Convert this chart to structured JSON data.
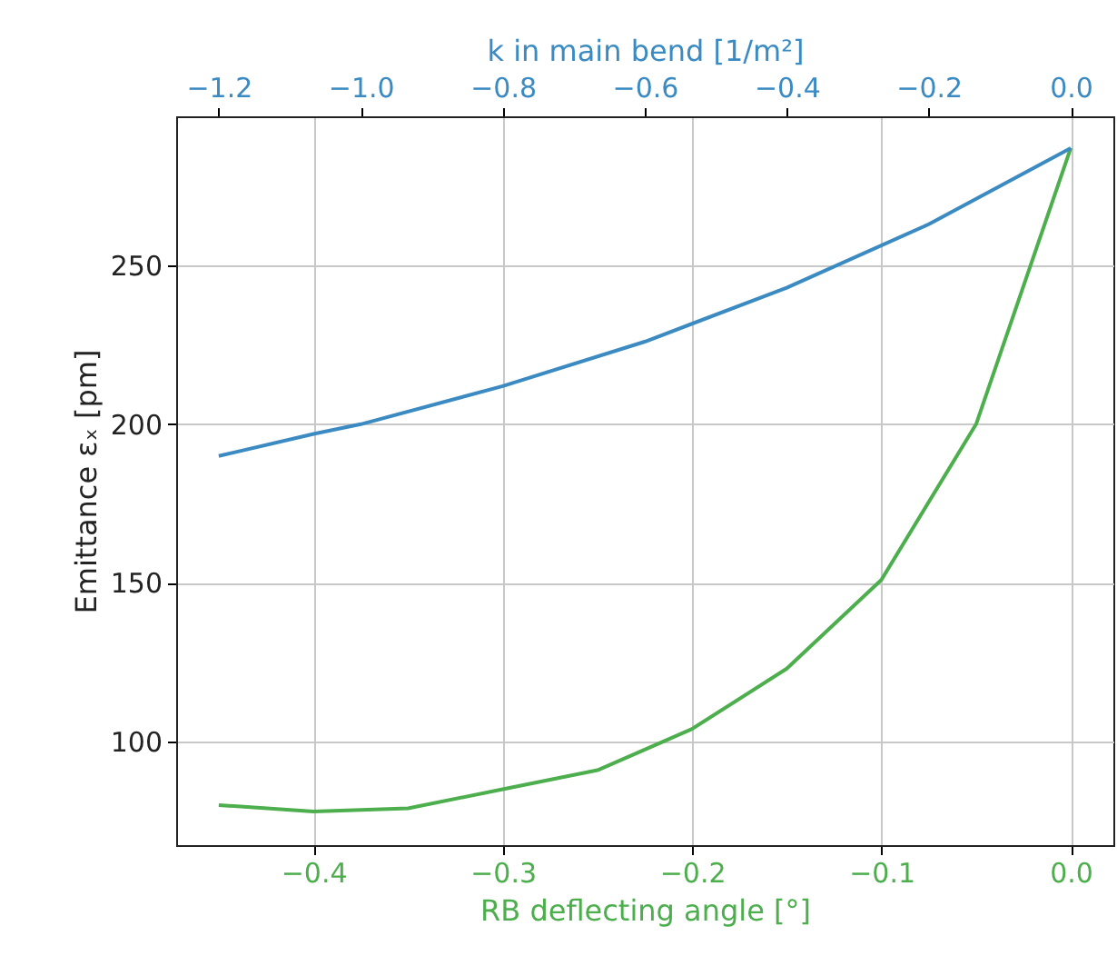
{
  "chart_data": {
    "type": "line",
    "xlabel": "RB deflecting angle [°]",
    "x2label": "k in main bend [1/m²]",
    "ylabel": "Emittance εₓ [pm]",
    "xlim": [
      -0.4725,
      0.0225
    ],
    "xticks": [
      -0.4,
      -0.3,
      -0.2,
      -0.1,
      {
        "value": 0,
        "label": "0.0"
      }
    ],
    "x2lim": [
      -1.26,
      0.06
    ],
    "x2ticks": [
      -1.2,
      {
        "value": -1,
        "label": "−1.0"
      },
      -0.8,
      -0.6,
      -0.4,
      -0.2,
      {
        "value": 0,
        "label": "0.0"
      }
    ],
    "ylim": [
      67.4,
      297
    ],
    "yticks": [
      100,
      150,
      200,
      250
    ],
    "grid": true,
    "line_style": "solid",
    "series": [
      {
        "color": "#4cae4c",
        "x": [
          -0.45,
          -0.4,
          -0.35,
          -0.3,
          -0.25,
          -0.2,
          -0.15,
          -0.1,
          -0.05,
          0.0
        ],
        "values": [
          80,
          78,
          79,
          85,
          91,
          104,
          123,
          151,
          200,
          287
        ]
      },
      {
        "color": "#3b8bc2",
        "axis": "x2",
        "x": [
          -1.2,
          -1.065,
          -1.0,
          -0.8,
          -0.6,
          -0.4,
          -0.2,
          0.0
        ],
        "values": [
          190,
          197,
          200,
          212,
          226,
          243,
          263,
          287
        ]
      }
    ]
  }
}
